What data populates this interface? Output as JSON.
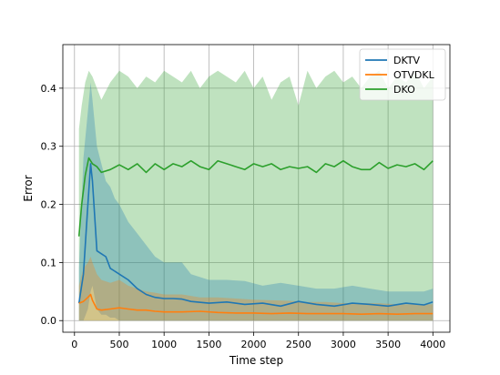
{
  "chart_data": {
    "type": "line",
    "title": "",
    "xlabel": "Time step",
    "ylabel": "Error",
    "xlim": [
      -130,
      4190
    ],
    "ylim": [
      -0.02,
      0.475
    ],
    "xticks": [
      0,
      500,
      1000,
      1500,
      2000,
      2500,
      3000,
      3500,
      4000
    ],
    "xtick_labels": [
      "0",
      "500",
      "1000",
      "1500",
      "2000",
      "2500",
      "3000",
      "3500",
      "4000"
    ],
    "yticks": [
      0.0,
      0.1,
      0.2,
      0.3,
      0.4
    ],
    "ytick_labels": [
      "0.0",
      "0.1",
      "0.2",
      "0.3",
      "0.4"
    ],
    "grid": true,
    "legend_position": "top-right",
    "series": [
      {
        "name": "DKTV",
        "color": "#1f77b4",
        "x": [
          50,
          100,
          150,
          180,
          200,
          250,
          300,
          350,
          400,
          450,
          500,
          600,
          700,
          800,
          900,
          1000,
          1100,
          1200,
          1300,
          1500,
          1700,
          1900,
          2100,
          2300,
          2500,
          2700,
          2900,
          3100,
          3300,
          3500,
          3700,
          3900,
          4000
        ],
        "y": [
          0.03,
          0.08,
          0.2,
          0.27,
          0.24,
          0.12,
          0.115,
          0.11,
          0.09,
          0.085,
          0.08,
          0.07,
          0.055,
          0.045,
          0.04,
          0.038,
          0.038,
          0.037,
          0.033,
          0.03,
          0.032,
          0.028,
          0.03,
          0.025,
          0.033,
          0.028,
          0.025,
          0.03,
          0.028,
          0.025,
          0.03,
          0.027,
          0.032
        ],
        "band_upper": [
          0.09,
          0.28,
          0.36,
          0.41,
          0.38,
          0.3,
          0.27,
          0.24,
          0.23,
          0.21,
          0.2,
          0.17,
          0.15,
          0.13,
          0.11,
          0.1,
          0.1,
          0.1,
          0.08,
          0.07,
          0.07,
          0.068,
          0.06,
          0.065,
          0.06,
          0.055,
          0.055,
          0.06,
          0.055,
          0.05,
          0.05,
          0.05,
          0.055
        ],
        "band_lower": [
          0.0,
          0.0,
          0.02,
          0.05,
          0.06,
          0.02,
          0.01,
          0.01,
          0.005,
          0.005,
          0.0,
          0.0,
          0.0,
          0.0,
          0.0,
          0.0,
          0.0,
          0.0,
          0.0,
          0.0,
          0.0,
          0.0,
          0.0,
          0.0,
          0.0,
          0.0,
          0.0,
          0.0,
          0.0,
          0.0,
          0.0,
          0.0,
          0.0
        ]
      },
      {
        "name": "OTVDKL",
        "color": "#ff7f0e",
        "x": [
          50,
          100,
          150,
          180,
          200,
          250,
          300,
          400,
          500,
          600,
          700,
          800,
          900,
          1000,
          1200,
          1400,
          1600,
          1800,
          2000,
          2200,
          2400,
          2600,
          2800,
          3000,
          3200,
          3400,
          3600,
          3800,
          4000
        ],
        "y": [
          0.03,
          0.033,
          0.04,
          0.045,
          0.035,
          0.02,
          0.018,
          0.02,
          0.022,
          0.02,
          0.018,
          0.018,
          0.016,
          0.015,
          0.015,
          0.016,
          0.014,
          0.013,
          0.013,
          0.012,
          0.013,
          0.012,
          0.012,
          0.012,
          0.011,
          0.012,
          0.011,
          0.012,
          0.012
        ],
        "band_upper": [
          0.06,
          0.09,
          0.1,
          0.11,
          0.1,
          0.08,
          0.07,
          0.065,
          0.07,
          0.06,
          0.055,
          0.05,
          0.048,
          0.045,
          0.045,
          0.04,
          0.04,
          0.038,
          0.036,
          0.035,
          0.034,
          0.032,
          0.032,
          0.03,
          0.03,
          0.03,
          0.028,
          0.028,
          0.028
        ],
        "band_lower": [
          0.0,
          0.0,
          0.0,
          0.0,
          0.0,
          0.0,
          0.0,
          0.0,
          0.0,
          0.0,
          0.0,
          0.0,
          0.0,
          0.0,
          0.0,
          0.0,
          0.0,
          0.0,
          0.0,
          0.0,
          0.0,
          0.0,
          0.0,
          0.0,
          0.0,
          0.0,
          0.0,
          0.0,
          0.0
        ]
      },
      {
        "name": "DKO",
        "color": "#2ca02c",
        "x": [
          50,
          80,
          120,
          160,
          200,
          250,
          300,
          400,
          500,
          600,
          700,
          800,
          900,
          1000,
          1100,
          1200,
          1300,
          1400,
          1500,
          1600,
          1700,
          1800,
          1900,
          2000,
          2100,
          2200,
          2300,
          2400,
          2500,
          2600,
          2700,
          2800,
          2900,
          3000,
          3100,
          3200,
          3300,
          3400,
          3500,
          3600,
          3700,
          3800,
          3900,
          4000
        ],
        "y": [
          0.145,
          0.2,
          0.25,
          0.28,
          0.27,
          0.265,
          0.255,
          0.26,
          0.268,
          0.26,
          0.27,
          0.255,
          0.27,
          0.26,
          0.27,
          0.265,
          0.275,
          0.265,
          0.26,
          0.275,
          0.27,
          0.265,
          0.26,
          0.27,
          0.265,
          0.27,
          0.26,
          0.265,
          0.262,
          0.265,
          0.255,
          0.27,
          0.265,
          0.275,
          0.265,
          0.26,
          0.26,
          0.272,
          0.262,
          0.268,
          0.265,
          0.27,
          0.26,
          0.275
        ],
        "band_upper": [
          0.33,
          0.37,
          0.41,
          0.43,
          0.42,
          0.4,
          0.38,
          0.41,
          0.43,
          0.42,
          0.4,
          0.42,
          0.41,
          0.43,
          0.42,
          0.41,
          0.43,
          0.4,
          0.42,
          0.43,
          0.42,
          0.41,
          0.43,
          0.4,
          0.42,
          0.38,
          0.41,
          0.42,
          0.37,
          0.43,
          0.4,
          0.42,
          0.43,
          0.41,
          0.42,
          0.4,
          0.42,
          0.43,
          0.4,
          0.42,
          0.41,
          0.43,
          0.4,
          0.42
        ],
        "band_lower": [
          0.0,
          0.0,
          0.0,
          0.0,
          0.0,
          0.0,
          0.0,
          0.0,
          0.0,
          0.0,
          0.0,
          0.0,
          0.0,
          0.0,
          0.0,
          0.0,
          0.0,
          0.0,
          0.0,
          0.0,
          0.0,
          0.0,
          0.0,
          0.0,
          0.0,
          0.0,
          0.0,
          0.0,
          0.0,
          0.0,
          0.0,
          0.0,
          0.0,
          0.0,
          0.0,
          0.0,
          0.0,
          0.0,
          0.0,
          0.0,
          0.0,
          0.0,
          0.0,
          0.0
        ]
      }
    ]
  }
}
